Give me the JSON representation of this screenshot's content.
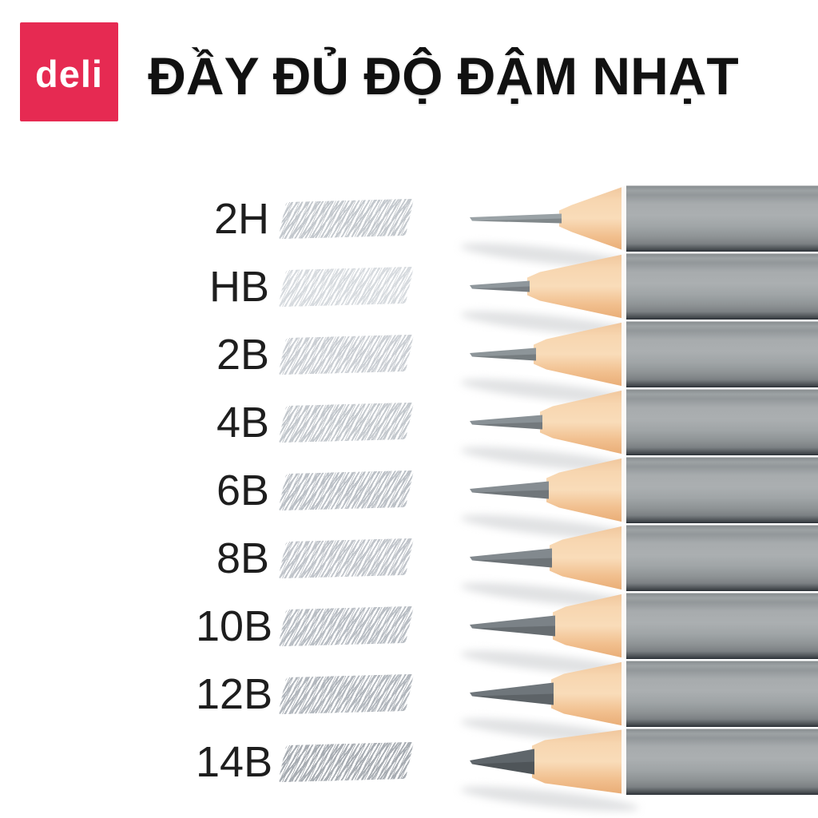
{
  "brand": {
    "logo_text": "deli",
    "logo_bg": "#e62a52",
    "logo_text_color": "#ffffff"
  },
  "title": "ĐẦY ĐỦ ĐỘ ĐẬM NHẠT",
  "title_color": "#111111",
  "grades": [
    {
      "label": "2H",
      "swatch_ink": "#8f99a3",
      "swatch_alpha": 0.52,
      "lead_len": 112,
      "lead_half": 6,
      "lead_color": "#9aa2a6"
    },
    {
      "label": "HB",
      "swatch_ink": "#99a2ac",
      "swatch_alpha": 0.38,
      "lead_len": 72,
      "lead_half": 7,
      "lead_color": "#8f979c"
    },
    {
      "label": "2B",
      "swatch_ink": "#8f98a2",
      "swatch_alpha": 0.46,
      "lead_len": 80,
      "lead_half": 8,
      "lead_color": "#8d9599"
    },
    {
      "label": "4B",
      "swatch_ink": "#8b949e",
      "swatch_alpha": 0.5,
      "lead_len": 88,
      "lead_half": 9,
      "lead_color": "#899196"
    },
    {
      "label": "6B",
      "swatch_ink": "#87909a",
      "swatch_alpha": 0.55,
      "lead_len": 96,
      "lead_half": 11,
      "lead_color": "#868d92"
    },
    {
      "label": "8B",
      "swatch_ink": "#89929c",
      "swatch_alpha": 0.52,
      "lead_len": 100,
      "lead_half": 12,
      "lead_color": "#82898e"
    },
    {
      "label": "10B",
      "swatch_ink": "#848d97",
      "swatch_alpha": 0.56,
      "lead_len": 104,
      "lead_half": 13,
      "lead_color": "#7b8287"
    },
    {
      "label": "12B",
      "swatch_ink": "#7f8892",
      "swatch_alpha": 0.6,
      "lead_len": 102,
      "lead_half": 14,
      "lead_color": "#6f767b"
    },
    {
      "label": "14B",
      "swatch_ink": "#788089",
      "swatch_alpha": 0.64,
      "lead_len": 78,
      "lead_half": 16,
      "lead_color": "#5f666b"
    }
  ],
  "pencil_colors": {
    "body": "#9aa0a2",
    "wood": "#f5cda3"
  }
}
